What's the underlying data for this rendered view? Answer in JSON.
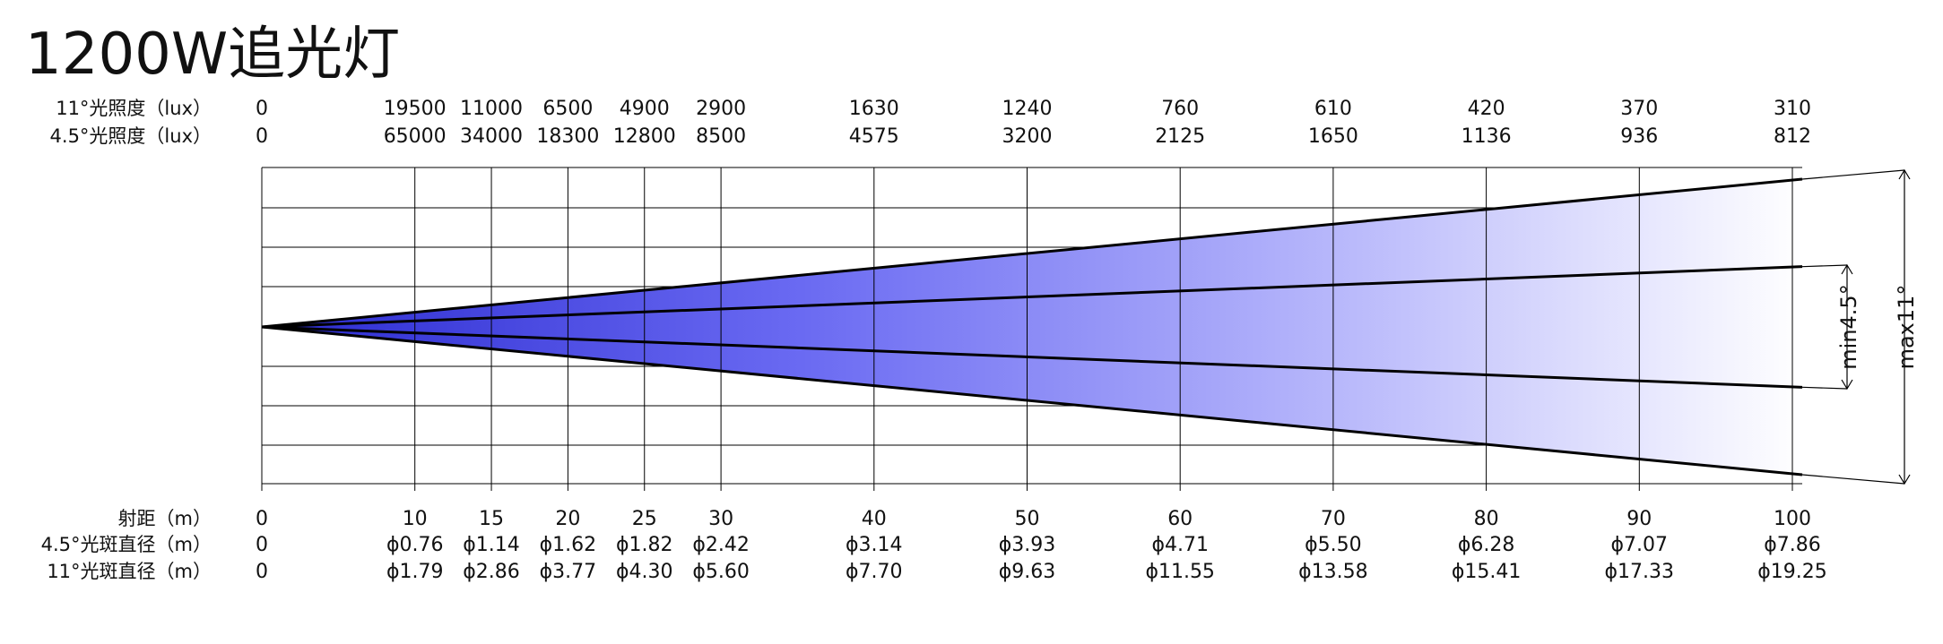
{
  "title": "1200W追光灯",
  "row_labels": {
    "illum_11": "11°光照度（lux）",
    "illum_45": "4.5°光照度（lux）",
    "distance": "射距（m）",
    "spot_45": "4.5°光斑直径（m）",
    "spot_11": "11°光斑直径（m）"
  },
  "chart_data": {
    "type": "beam-diagram",
    "distance_m": [
      0,
      10,
      15,
      20,
      25,
      30,
      40,
      50,
      60,
      70,
      80,
      90,
      100
    ],
    "distance_labels": [
      "0",
      "10",
      "15",
      "20",
      "25",
      "30",
      "40",
      "50",
      "60",
      "70",
      "80",
      "90",
      "100"
    ],
    "illuminance_11deg_labels": [
      "0",
      "19500",
      "11000",
      "6500",
      "4900",
      "2900",
      "1630",
      "1240",
      "760",
      "610",
      "420",
      "370",
      "310"
    ],
    "illuminance_45deg_labels": [
      "0",
      "65000",
      "34000",
      "18300",
      "12800",
      "8500",
      "4575",
      "3200",
      "2125",
      "1650",
      "1136",
      "936",
      "812"
    ],
    "spot_diameter_45deg_labels": [
      "0",
      "ϕ0.76",
      "ϕ1.14",
      "ϕ1.62",
      "ϕ1.82",
      "ϕ2.42",
      "ϕ3.14",
      "ϕ3.93",
      "ϕ4.71",
      "ϕ5.50",
      "ϕ6.28",
      "ϕ7.07",
      "ϕ7.86"
    ],
    "spot_diameter_11deg_labels": [
      "0",
      "ϕ1.79",
      "ϕ2.86",
      "ϕ3.77",
      "ϕ4.30",
      "ϕ5.60",
      "ϕ7.70",
      "ϕ9.63",
      "ϕ11.55",
      "ϕ13.58",
      "ϕ15.41",
      "ϕ17.33",
      "ϕ19.25"
    ],
    "beam_angle_min_label": "min4.5°",
    "beam_angle_max_label": "max11°",
    "colors": {
      "beam_dark": "#3a3ad8",
      "beam_light": "#ffffff",
      "line": "#000000",
      "grid": "#000000"
    }
  }
}
